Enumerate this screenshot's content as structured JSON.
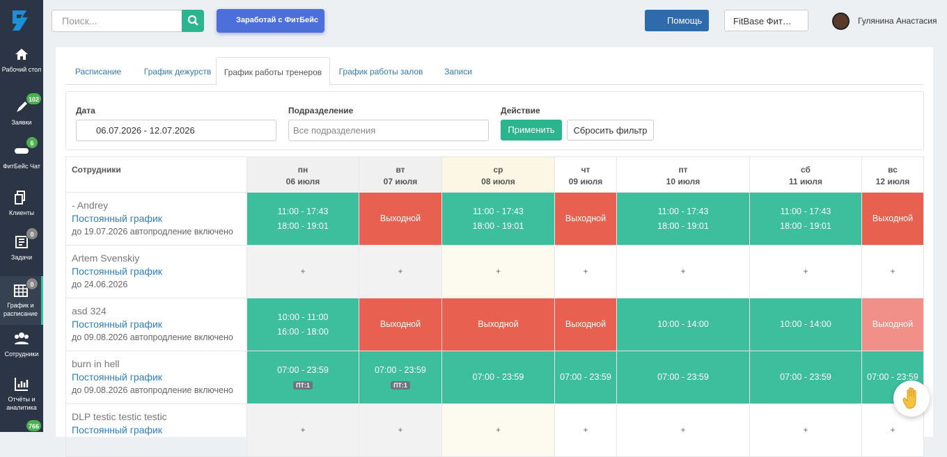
{
  "sidebar": {
    "items": [
      {
        "label": "Рабочий стол"
      },
      {
        "label": "Заявки",
        "badge": 102
      },
      {
        "label": "ФитБейс Чат",
        "badge": 6
      },
      {
        "label": "Клиенты"
      },
      {
        "label": "Задачи",
        "badge": 0
      },
      {
        "label": "График и расписание",
        "badge": 0,
        "active": true
      },
      {
        "label": "Сотрудники"
      },
      {
        "label": "Отчёты и аналитика"
      },
      {
        "badge": 766
      }
    ]
  },
  "header": {
    "search_placeholder": "Поиск...",
    "promo": "Заработай с ФитБейс",
    "help": "Помощь",
    "club": "FitBase Фит…",
    "user": "Гулянина Анастасия"
  },
  "tabs": {
    "items": [
      "Расписание",
      "График дежурств",
      "График работы тренеров",
      "График работы залов",
      "Записи"
    ],
    "active": 2
  },
  "filters": {
    "date_label": "Дата",
    "date_value": "06.07.2026 - 12.07.2026",
    "division_label": "Подразделение",
    "division_placeholder": "Все подразделения",
    "action_label": "Действие",
    "apply": "Применить",
    "reset": "Сбросить фильтр"
  },
  "table": {
    "first_header": "Сотрудники",
    "days": [
      {
        "dow": "пн",
        "date": "06 июля",
        "shade": "gray"
      },
      {
        "dow": "вт",
        "date": "07 июля",
        "shade": "gray"
      },
      {
        "dow": "ср",
        "date": "08 июля",
        "shade": "today"
      },
      {
        "dow": "чт",
        "date": "09 июля",
        "shade": "none"
      },
      {
        "dow": "пт",
        "date": "10 июля",
        "shade": "none"
      },
      {
        "dow": "сб",
        "date": "11 июля",
        "shade": "none"
      },
      {
        "dow": "вс",
        "date": "12 июля",
        "shade": "none"
      }
    ],
    "rows": [
      {
        "name": "- Andrey",
        "schedule": "Постоянный график",
        "note": "до 19.07.2026 автопродление включено",
        "cells": [
          {
            "status": "work",
            "lines": [
              "11:00 - 17:43",
              "18:00 - 19:01"
            ]
          },
          {
            "status": "off",
            "lines": [
              "Выходной"
            ]
          },
          {
            "status": "work",
            "lines": [
              "11:00 - 17:43",
              "18:00 - 19:01"
            ]
          },
          {
            "status": "off",
            "lines": [
              "Выходной"
            ]
          },
          {
            "status": "work",
            "lines": [
              "11:00 - 17:43",
              "18:00 - 19:01"
            ]
          },
          {
            "status": "work",
            "lines": [
              "11:00 - 17:43",
              "18:00 - 19:01"
            ]
          },
          {
            "status": "off",
            "lines": [
              "Выходной"
            ]
          }
        ]
      },
      {
        "name": "Artem Svenskiy",
        "schedule": "Постоянный график",
        "note": "до 24.06.2026",
        "cells": [
          {
            "status": "empty",
            "lines": [
              "+"
            ]
          },
          {
            "status": "empty",
            "lines": [
              "+"
            ]
          },
          {
            "status": "empty",
            "lines": [
              "+"
            ]
          },
          {
            "status": "empty",
            "lines": [
              "+"
            ]
          },
          {
            "status": "empty",
            "lines": [
              "+"
            ]
          },
          {
            "status": "empty",
            "lines": [
              "+"
            ]
          },
          {
            "status": "empty",
            "lines": [
              "+"
            ]
          }
        ]
      },
      {
        "name": "asd 324",
        "schedule": "Постоянный график",
        "note": "до 09.08.2026 автопродление включено",
        "cells": [
          {
            "status": "work",
            "lines": [
              "10:00 - 11:00",
              "16:00 - 18:00"
            ]
          },
          {
            "status": "off",
            "lines": [
              "Выходной"
            ]
          },
          {
            "status": "off",
            "lines": [
              "Выходной"
            ]
          },
          {
            "status": "off",
            "lines": [
              "Выходной"
            ]
          },
          {
            "status": "work",
            "lines": [
              "10:00 - 14:00"
            ]
          },
          {
            "status": "work",
            "lines": [
              "10:00 - 14:00"
            ]
          },
          {
            "status": "off_light",
            "lines": [
              "Выходной"
            ]
          }
        ]
      },
      {
        "name": "burn in hell",
        "schedule": "Постоянный график",
        "note": "до 09.08.2026 автопродление включено",
        "cells": [
          {
            "status": "work",
            "lines": [
              "07:00 - 23:59"
            ],
            "tag": "ПТ:1"
          },
          {
            "status": "work",
            "lines": [
              "07:00 - 23:59"
            ],
            "tag": "ПТ:1"
          },
          {
            "status": "work",
            "lines": [
              "07:00 - 23:59"
            ]
          },
          {
            "status": "work",
            "lines": [
              "07:00 - 23:59"
            ]
          },
          {
            "status": "work",
            "lines": [
              "07:00 - 23:59"
            ]
          },
          {
            "status": "work",
            "lines": [
              "07:00 - 23:59"
            ]
          },
          {
            "status": "work",
            "lines": [
              "07:00 - 23:59"
            ]
          }
        ]
      },
      {
        "name": "DLP testic testic testic",
        "schedule": "Постоянный график",
        "cells": [
          {
            "status": "empty",
            "lines": [
              "+"
            ]
          },
          {
            "status": "empty",
            "lines": [
              "+"
            ]
          },
          {
            "status": "empty",
            "lines": [
              "+"
            ]
          },
          {
            "status": "empty",
            "lines": [
              "+"
            ]
          },
          {
            "status": "empty",
            "lines": [
              "+"
            ]
          },
          {
            "status": "empty",
            "lines": [
              "+"
            ]
          },
          {
            "status": "empty",
            "lines": [
              "+"
            ]
          }
        ]
      }
    ]
  }
}
